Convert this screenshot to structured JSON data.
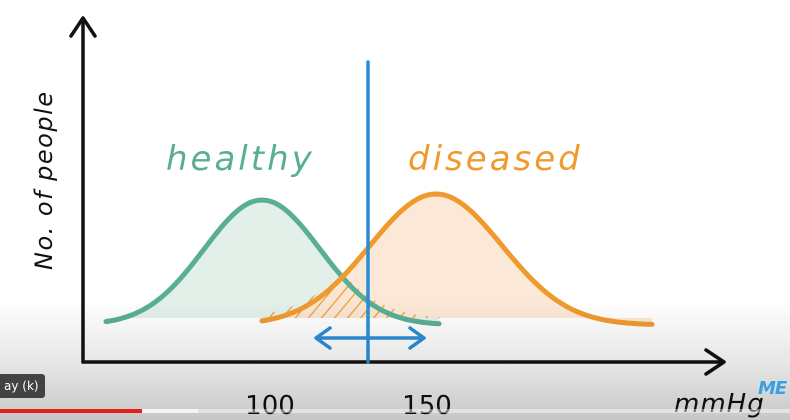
{
  "diagram": {
    "y_axis_label": "No. of people",
    "x_axis_unit": "mmHg",
    "x_ticks": [
      {
        "label": "100",
        "value": 100
      },
      {
        "label": "150",
        "value": 150
      }
    ],
    "distributions": [
      {
        "label": "healthy",
        "color": "#5aae95",
        "fill": "#e3efe9"
      },
      {
        "label": "diseased",
        "color": "#ef9a2e",
        "fill": "#fce4cf"
      }
    ],
    "threshold_color": "#2a8ed6",
    "overlap_hatch_color": "#ef9a2e"
  },
  "player": {
    "tooltip": "ay (k)",
    "progress_fraction": 0.18,
    "buffer_fraction": 0.25,
    "progress_color": "#e62117"
  },
  "branding": {
    "logo_text": "ME",
    "logo_color": "#3aa0e6"
  }
}
